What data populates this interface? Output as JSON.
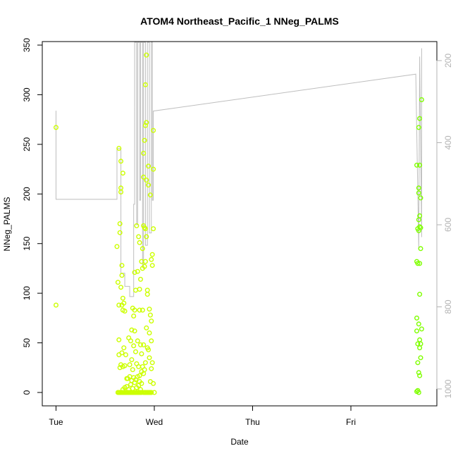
{
  "chart_data": {
    "type": "scatter",
    "title": "ATOM4 Northeast_Pacific_1 NNeg_PALMS",
    "xlabel": "Date",
    "ylabel": "NNeg_PALMS",
    "x_ticks": [
      "Tue",
      "Wed",
      "Thu",
      "Fri"
    ],
    "x_tick_positions": [
      0,
      1,
      2,
      3
    ],
    "x_range": [
      -0.2,
      3.9
    ],
    "ylim": [
      -13,
      354
    ],
    "y_ticks": [
      0,
      50,
      100,
      150,
      200,
      250,
      300,
      350
    ],
    "right_axis": {
      "label": "",
      "ticks": [
        200,
        400,
        600,
        800,
        1000
      ],
      "range_top_to_bottom": [
        170,
        1015
      ],
      "color": "#b3b3b3"
    },
    "grid": false,
    "legend": "none",
    "colors": {
      "points_early": "#ccff00",
      "points_late": "#7fff00",
      "depth_line": "#bebebe",
      "axis": "#000000"
    },
    "series": [
      {
        "color": "#ccff00",
        "points": [
          [
            0.0,
            88
          ],
          [
            0.0,
            267
          ],
          [
            0.62,
            147
          ],
          [
            0.63,
            111
          ],
          [
            0.64,
            246
          ],
          [
            0.64,
            88
          ],
          [
            0.65,
            170
          ],
          [
            0.65,
            161
          ],
          [
            0.66,
            233
          ],
          [
            0.66,
            206
          ],
          [
            0.66,
            202
          ],
          [
            0.66,
            106
          ],
          [
            0.67,
            128
          ],
          [
            0.67,
            118
          ],
          [
            0.67,
            88
          ],
          [
            0.68,
            221
          ],
          [
            0.68,
            95
          ],
          [
            0.68,
            83
          ],
          [
            0.69,
            90
          ],
          [
            0.7,
            82
          ],
          [
            0.64,
            53
          ],
          [
            0.64,
            38
          ],
          [
            0.65,
            25
          ],
          [
            0.66,
            28
          ],
          [
            0.67,
            40
          ],
          [
            0.68,
            26
          ],
          [
            0.69,
            45
          ],
          [
            0.7,
            27
          ],
          [
            0.71,
            38
          ],
          [
            0.72,
            14
          ],
          [
            0.63,
            0
          ],
          [
            0.64,
            0
          ],
          [
            0.65,
            0
          ],
          [
            0.66,
            0
          ],
          [
            0.67,
            0
          ],
          [
            0.68,
            0
          ],
          [
            0.69,
            0
          ],
          [
            0.7,
            0
          ],
          [
            0.71,
            0
          ],
          [
            0.72,
            0
          ],
          [
            0.73,
            0
          ],
          [
            0.74,
            0
          ],
          [
            0.75,
            0
          ],
          [
            0.76,
            0
          ],
          [
            0.77,
            0
          ],
          [
            0.78,
            0
          ],
          [
            0.79,
            0
          ],
          [
            0.8,
            0
          ],
          [
            0.81,
            0
          ],
          [
            0.82,
            0
          ],
          [
            0.83,
            0
          ],
          [
            0.84,
            0
          ],
          [
            0.85,
            0
          ],
          [
            0.86,
            0
          ],
          [
            0.87,
            0
          ],
          [
            0.68,
            3
          ],
          [
            0.7,
            5
          ],
          [
            0.72,
            6
          ],
          [
            0.74,
            3
          ],
          [
            0.76,
            8
          ],
          [
            0.78,
            4
          ],
          [
            0.8,
            10
          ],
          [
            0.82,
            5
          ],
          [
            0.84,
            7
          ],
          [
            0.86,
            3
          ],
          [
            0.73,
            14
          ],
          [
            0.75,
            16
          ],
          [
            0.77,
            12
          ],
          [
            0.79,
            15
          ],
          [
            0.81,
            13
          ],
          [
            0.83,
            16
          ],
          [
            0.85,
            11
          ],
          [
            0.87,
            9
          ],
          [
            0.74,
            55
          ],
          [
            0.75,
            28
          ],
          [
            0.76,
            52
          ],
          [
            0.77,
            33
          ],
          [
            0.77,
            63
          ],
          [
            0.78,
            85
          ],
          [
            0.78,
            23
          ],
          [
            0.79,
            77
          ],
          [
            0.79,
            47
          ],
          [
            0.8,
            121
          ],
          [
            0.8,
            83
          ],
          [
            0.8,
            62
          ],
          [
            0.81,
            103
          ],
          [
            0.81,
            41
          ],
          [
            0.82,
            168
          ],
          [
            0.82,
            29
          ],
          [
            0.83,
            122
          ],
          [
            0.83,
            52
          ],
          [
            0.84,
            157
          ],
          [
            0.84,
            26
          ],
          [
            0.85,
            151
          ],
          [
            0.85,
            104
          ],
          [
            0.85,
            83
          ],
          [
            0.86,
            114
          ],
          [
            0.86,
            48
          ],
          [
            0.87,
            132
          ],
          [
            0.87,
            39
          ],
          [
            0.88,
            83
          ],
          [
            0.88,
            26
          ],
          [
            0.89,
            0
          ],
          [
            0.9,
            0
          ],
          [
            0.91,
            0
          ],
          [
            0.92,
            0
          ],
          [
            0.93,
            0
          ],
          [
            0.94,
            0
          ],
          [
            0.95,
            0
          ],
          [
            0.96,
            0
          ],
          [
            0.97,
            0
          ],
          [
            1.0,
            0
          ],
          [
            0.88,
            125
          ],
          [
            0.88,
            145
          ],
          [
            0.89,
            241
          ],
          [
            0.89,
            217
          ],
          [
            0.89,
            168
          ],
          [
            0.89,
            48
          ],
          [
            0.9,
            254
          ],
          [
            0.9,
            166
          ],
          [
            0.9,
            127
          ],
          [
            0.9,
            23
          ],
          [
            0.91,
            310
          ],
          [
            0.91,
            269
          ],
          [
            0.91,
            165
          ],
          [
            0.91,
            132
          ],
          [
            0.92,
            340
          ],
          [
            0.92,
            272
          ],
          [
            0.92,
            214
          ],
          [
            0.92,
            157
          ],
          [
            0.92,
            65
          ],
          [
            0.93,
            103
          ],
          [
            0.93,
            99
          ],
          [
            0.94,
            228
          ],
          [
            0.94,
            209
          ],
          [
            0.94,
            43
          ],
          [
            0.95,
            84
          ],
          [
            0.95,
            35
          ],
          [
            0.96,
            199
          ],
          [
            0.96,
            78
          ],
          [
            0.96,
            11
          ],
          [
            0.97,
            134
          ],
          [
            0.97,
            72
          ],
          [
            0.97,
            24
          ],
          [
            0.98,
            139
          ],
          [
            0.98,
            128
          ],
          [
            0.98,
            30
          ],
          [
            0.99,
            264
          ],
          [
            0.99,
            225
          ],
          [
            0.99,
            165
          ],
          [
            0.99,
            9
          ],
          [
            0.97,
            52
          ],
          [
            0.95,
            60
          ],
          [
            0.93,
            45
          ],
          [
            0.91,
            30
          ],
          [
            0.89,
            19
          ],
          [
            0.87,
            21
          ],
          [
            0.85,
            17
          ]
        ]
      },
      {
        "color": "#7fff00",
        "points": [
          [
            3.67,
            229
          ],
          [
            3.67,
            132
          ],
          [
            3.67,
            75
          ],
          [
            3.67,
            62
          ],
          [
            3.67,
            1
          ],
          [
            3.68,
            165
          ],
          [
            3.68,
            130
          ],
          [
            3.68,
            49
          ],
          [
            3.68,
            30
          ],
          [
            3.68,
            2
          ],
          [
            3.69,
            267
          ],
          [
            3.69,
            206
          ],
          [
            3.69,
            201
          ],
          [
            3.69,
            174
          ],
          [
            3.69,
            163
          ],
          [
            3.69,
            69
          ],
          [
            3.69,
            20
          ],
          [
            3.69,
            0
          ],
          [
            3.7,
            276
          ],
          [
            3.7,
            229
          ],
          [
            3.7,
            178
          ],
          [
            3.7,
            167
          ],
          [
            3.7,
            130
          ],
          [
            3.7,
            99
          ],
          [
            3.7,
            53
          ],
          [
            3.7,
            45
          ],
          [
            3.7,
            17
          ],
          [
            3.71,
            196
          ],
          [
            3.71,
            166
          ],
          [
            3.71,
            145
          ],
          [
            3.71,
            49
          ],
          [
            3.71,
            35
          ],
          [
            3.72,
            295
          ],
          [
            3.72,
            64
          ]
        ]
      }
    ],
    "depth_line": {
      "color": "#bebebe",
      "x": [
        0.0,
        0.0,
        0.0,
        0.62,
        0.62,
        0.66,
        0.66,
        0.7,
        0.7,
        0.75,
        0.75,
        0.79,
        0.79,
        0.8,
        0.8,
        0.82,
        0.82,
        0.83,
        0.83,
        0.85,
        0.85,
        0.86,
        0.86,
        0.88,
        0.88,
        0.89,
        0.89,
        0.91,
        0.91,
        0.93,
        0.93,
        0.95,
        0.95,
        0.97,
        0.97,
        0.98,
        0.98,
        0.99,
        0.99,
        3.66,
        3.66,
        3.69,
        3.69,
        3.7,
        3.7,
        3.72,
        3.72
      ],
      "y": [
        350,
        322,
        538,
        538,
        414,
        414,
        718,
        718,
        750,
        750,
        775,
        775,
        550,
        550,
        100,
        100,
        600,
        600,
        80,
        80,
        540,
        540,
        90,
        90,
        700,
        700,
        85,
        85,
        650,
        650,
        100,
        100,
        620,
        620,
        110,
        110,
        540,
        540,
        323,
        233,
        233,
        660,
        660,
        190,
        190,
        630,
        170
      ]
    }
  }
}
